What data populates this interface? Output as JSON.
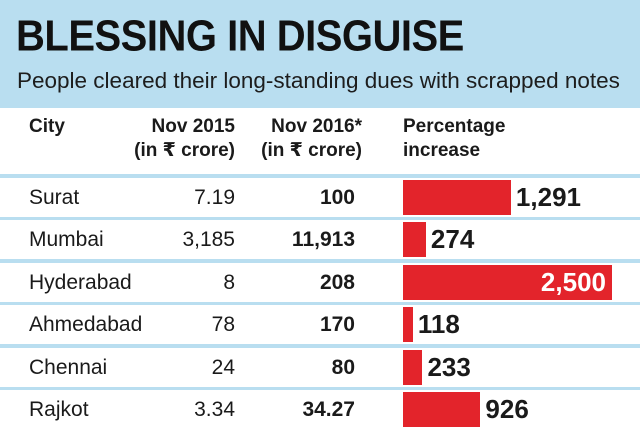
{
  "title": "BLESSING IN DISGUISE",
  "subtitle": "People cleared their long-standing dues with scrapped notes",
  "header": {
    "city": "City",
    "nov2015_line1": "Nov 2015",
    "nov2015_line2": "(in ₹ crore)",
    "nov2016_line1": "Nov 2016*",
    "nov2016_line2": "(in ₹ crore)",
    "pct_line1": "Percentage",
    "pct_line2": "increase"
  },
  "colors": {
    "background": "#b9def0",
    "bar": "#e3242b",
    "row": "#ffffff"
  },
  "chart_data": {
    "type": "table",
    "columns": [
      "City",
      "Nov 2015 (in ₹ crore)",
      "Nov 2016* (in ₹ crore)",
      "Percentage increase"
    ],
    "bar_max": 2500,
    "rows": [
      {
        "city": "Surat",
        "nov2015": "7.19",
        "nov2016": "100",
        "pct": 1291,
        "pct_label": "1,291"
      },
      {
        "city": "Mumbai",
        "nov2015": "3,185",
        "nov2016": "11,913",
        "pct": 274,
        "pct_label": "274"
      },
      {
        "city": "Hyderabad",
        "nov2015": "8",
        "nov2016": "208",
        "pct": 2500,
        "pct_label": "2,500"
      },
      {
        "city": "Ahmedabad",
        "nov2015": "78",
        "nov2016": "170",
        "pct": 118,
        "pct_label": "118"
      },
      {
        "city": "Chennai",
        "nov2015": "24",
        "nov2016": "80",
        "pct": 233,
        "pct_label": "233"
      },
      {
        "city": "Rajkot",
        "nov2015": "3.34",
        "nov2016": "34.27",
        "pct": 926,
        "pct_label": "926"
      }
    ]
  }
}
